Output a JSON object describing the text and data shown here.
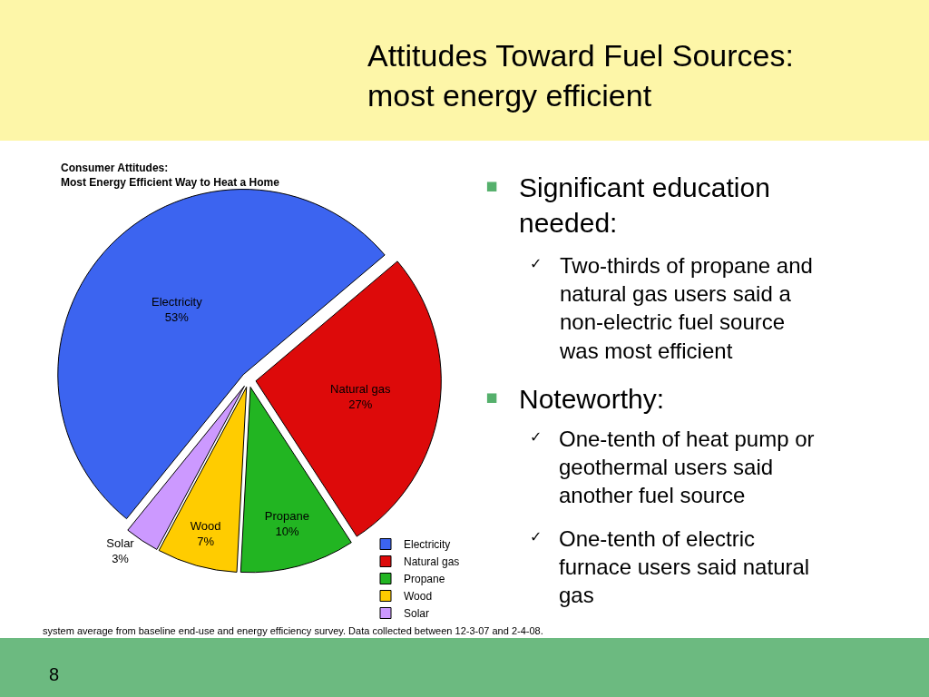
{
  "chart_data": {
    "type": "pie",
    "title": "Attitudes Toward Fuel Sources:\nmost energy efficient",
    "subtitle": "Consumer Attitudes:\nMost Energy Efficient Way to Heat a Home",
    "categories": [
      "Electricity",
      "Natural gas",
      "Propane",
      "Wood",
      "Solar"
    ],
    "values": [
      53,
      27,
      10,
      7,
      3
    ],
    "value_labels": [
      "53%",
      "27%",
      "10%",
      "7%",
      "3%"
    ],
    "colors": [
      "#3c64f0",
      "#dd0a0a",
      "#22b522",
      "#ffcc00",
      "#cc99ff"
    ],
    "legend": "bottom right",
    "annotations": [
      "▪ Significant education needed:",
      "✓ Two-thirds of propane and natural gas users said a non-electric fuel source was most efficient",
      "▪ Noteworthy:",
      "✓ One-tenth of heat pump or geothermal users said another fuel source",
      "✓ One-tenth of electric furnace users said natural gas",
      "system average from baseline end-use and energy efficiency survey. Data collected between 12-3-07 and 2-4-08.",
      "8"
    ]
  }
}
